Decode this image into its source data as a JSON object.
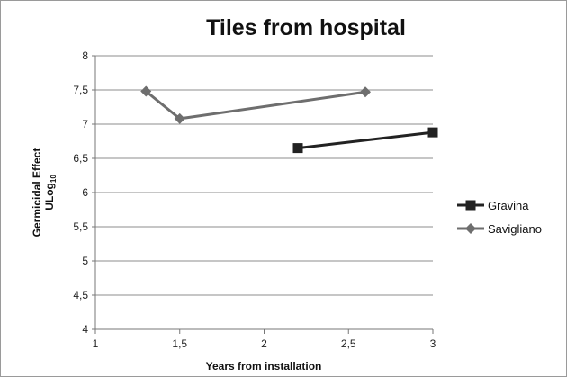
{
  "chart_data": {
    "type": "line",
    "title": "Tiles from hospital",
    "xlabel": "Years from installation",
    "ylabel_line1": "Germicidal Effect",
    "ylabel_line2_base": "ULog",
    "ylabel_line2_sub": "10",
    "xlim": [
      1,
      3
    ],
    "ylim": [
      4,
      8
    ],
    "x_ticks": [
      "1",
      "1,5",
      "2",
      "2,5",
      "3"
    ],
    "x_tick_values": [
      1,
      1.5,
      2,
      2.5,
      3
    ],
    "y_ticks": [
      "4",
      "4,5",
      "5",
      "5,5",
      "6",
      "6,5",
      "7",
      "7,5",
      "8"
    ],
    "y_tick_values": [
      4,
      4.5,
      5,
      5.5,
      6,
      6.5,
      7,
      7.5,
      8
    ],
    "grid": true,
    "legend_position": "right",
    "series": [
      {
        "name": "Gravina",
        "marker": "square",
        "color": "#222222",
        "points": [
          {
            "x": 2.2,
            "y": 6.65
          },
          {
            "x": 3.0,
            "y": 6.88
          }
        ]
      },
      {
        "name": "Savigliano",
        "marker": "diamond",
        "color": "#6e6e6e",
        "points": [
          {
            "x": 1.3,
            "y": 7.48
          },
          {
            "x": 1.5,
            "y": 7.08
          },
          {
            "x": 2.6,
            "y": 7.47
          }
        ]
      }
    ]
  }
}
